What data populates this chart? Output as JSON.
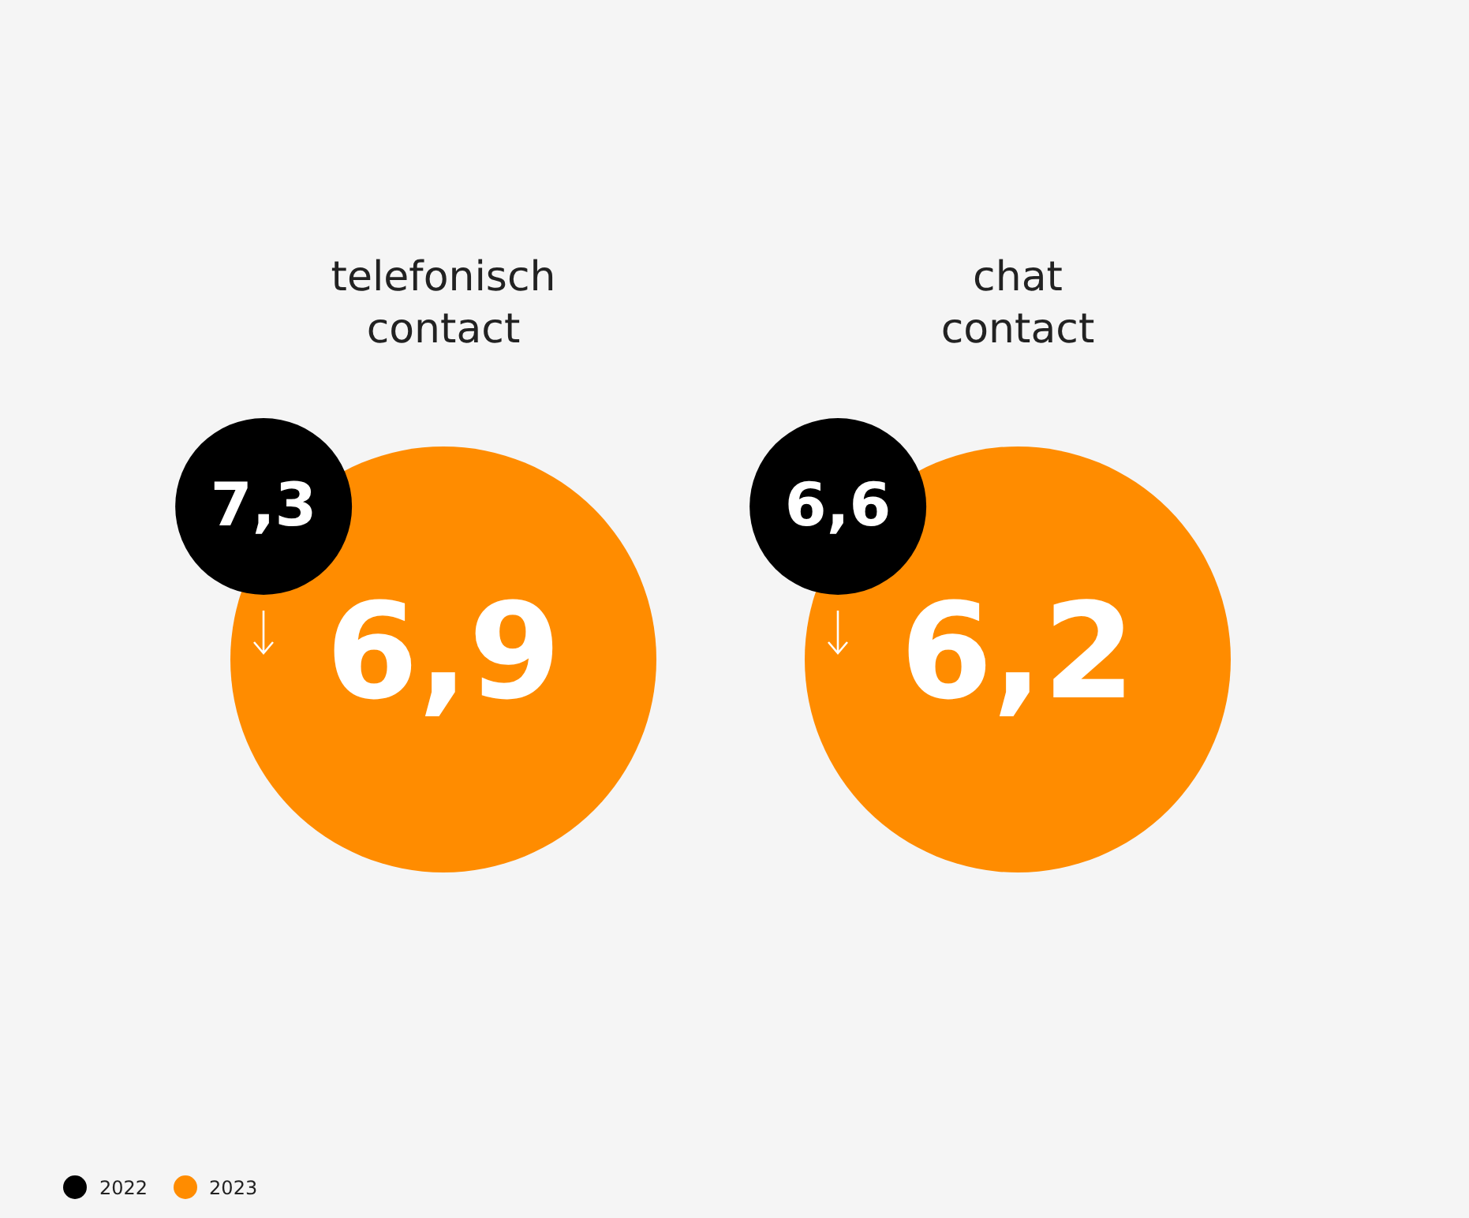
{
  "chart_data": {
    "type": "other",
    "categories": [
      "telefonisch contact",
      "chat contact"
    ],
    "series": [
      {
        "name": "2022",
        "color": "#000000",
        "values": [
          7.3,
          6.6
        ],
        "value_labels": [
          "7,3",
          "6,6"
        ]
      },
      {
        "name": "2023",
        "color": "#ff8c00",
        "values": [
          6.9,
          6.2
        ],
        "value_labels": [
          "6,9",
          "6,2"
        ]
      }
    ],
    "legend": "bottom left"
  }
}
